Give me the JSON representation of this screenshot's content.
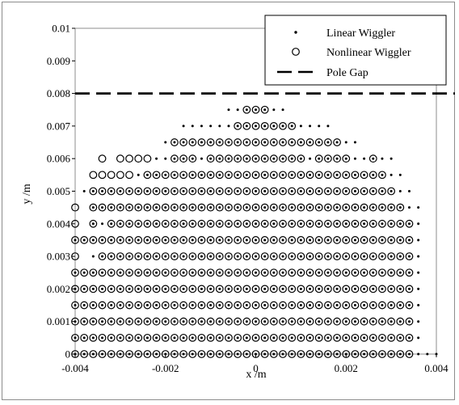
{
  "chart_data": {
    "type": "scatter",
    "xlabel": "x /m",
    "ylabel": "y /m",
    "xlim": [
      -0.004,
      0.004
    ],
    "ylim": [
      0,
      0.01
    ],
    "x_ticks": [
      "-0.004",
      "-0.002",
      "0",
      "0.002",
      "0.004"
    ],
    "y_ticks": [
      "0",
      "0.001",
      "0.002",
      "0.003",
      "0.004",
      "0.005",
      "0.006",
      "0.007",
      "0.008",
      "0.009",
      "0.01"
    ],
    "grid": false,
    "legend_position": "top-right",
    "legend": [
      "Linear Wiggler",
      "Nonlinear Wiggler",
      "Pole Gap"
    ],
    "grid_step": 0.0002,
    "pole_gap_y": 0.008,
    "series": [
      {
        "name": "Linear Wiggler",
        "marker": "dot",
        "rows": [
          {
            "y": 0.0075,
            "x_from": -0.0006,
            "x_to": 0.0006
          },
          {
            "y": 0.007,
            "x_from": -0.0016,
            "x_to": 0.0016
          },
          {
            "y": 0.0065,
            "x_from": -0.002,
            "x_to": 0.0022
          },
          {
            "y": 0.006,
            "x_from": -0.0022,
            "x_to": 0.003
          },
          {
            "y": 0.0055,
            "x_from": -0.0026,
            "x_to": 0.0032
          },
          {
            "y": 0.005,
            "x_from": -0.0038,
            "x_to": 0.0034
          },
          {
            "y": 0.0045,
            "x_from": -0.0036,
            "x_to": 0.0036
          },
          {
            "y": 0.004,
            "x_from": -0.0036,
            "x_to": 0.0036
          },
          {
            "y": 0.0035,
            "x_from": -0.004,
            "x_to": 0.0036
          },
          {
            "y": 0.003,
            "x_from": -0.0036,
            "x_to": 0.0036
          },
          {
            "y": 0.0025,
            "x_from": -0.004,
            "x_to": 0.0036
          },
          {
            "y": 0.002,
            "x_from": -0.004,
            "x_to": 0.0036
          },
          {
            "y": 0.0015,
            "x_from": -0.004,
            "x_to": 0.0036
          },
          {
            "y": 0.001,
            "x_from": -0.004,
            "x_to": 0.0036
          },
          {
            "y": 0.0005,
            "x_from": -0.004,
            "x_to": 0.0036
          },
          {
            "y": 0,
            "x_from": -0.004,
            "x_to": 0.004
          }
        ]
      },
      {
        "name": "Nonlinear Wiggler",
        "marker": "circle",
        "rows": [
          {
            "y": 0.0075,
            "x": [
              -0.0002,
              0,
              0.0002
            ]
          },
          {
            "y": 0.007,
            "x_from": -0.0004,
            "x_to": 0.0008
          },
          {
            "y": 0.0065,
            "x_from": -0.0018,
            "x_to": 0.0018
          },
          {
            "y": 0.006,
            "x": [
              -0.0034,
              -0.003,
              -0.0028,
              -0.0026,
              -0.0024,
              -0.0018,
              -0.0016,
              -0.0014,
              -0.001,
              -0.0008,
              -0.0006,
              -0.0004,
              -0.0002,
              0,
              0.0002,
              0.0004,
              0.0006,
              0.0008,
              0.001,
              0.0014,
              0.0016,
              0.0018,
              0.002,
              0.0026
            ]
          },
          {
            "y": 0.0055,
            "x": [
              -0.0036,
              -0.0034,
              -0.0032,
              -0.003,
              -0.0028,
              -0.0024,
              -0.0022,
              -0.002,
              -0.0018,
              -0.0016,
              -0.0014,
              -0.0012,
              -0.001,
              -0.0008,
              -0.0006,
              -0.0004,
              -0.0002,
              0,
              0.0002,
              0.0004,
              0.0006,
              0.0008,
              0.001,
              0.0012,
              0.0014,
              0.0016,
              0.0018,
              0.002,
              0.0022,
              0.0024,
              0.0026,
              0.0028
            ]
          },
          {
            "y": 0.005,
            "x_from": -0.0036,
            "x_to": 0.003
          },
          {
            "y": 0.0045,
            "x": [
              -0.004,
              -0.0036,
              -0.0034,
              -0.0032,
              -0.003,
              -0.0028,
              -0.0026,
              -0.0024,
              -0.0022,
              -0.002,
              -0.0018,
              -0.0016,
              -0.0014,
              -0.0012,
              -0.001,
              -0.0008,
              -0.0006,
              -0.0004,
              -0.0002,
              0,
              0.0002,
              0.0004,
              0.0006,
              0.0008,
              0.001,
              0.0012,
              0.0014,
              0.0016,
              0.0018,
              0.002,
              0.0022,
              0.0024,
              0.0026,
              0.0028,
              0.003,
              0.0032
            ]
          },
          {
            "y": 0.004,
            "x": [
              -0.004,
              -0.0036,
              -0.0032,
              -0.003,
              -0.0028,
              -0.0026,
              -0.0024,
              -0.0022,
              -0.002,
              -0.0018,
              -0.0016,
              -0.0014,
              -0.0012,
              -0.001,
              -0.0008,
              -0.0006,
              -0.0004,
              -0.0002,
              0,
              0.0002,
              0.0004,
              0.0006,
              0.0008,
              0.001,
              0.0012,
              0.0014,
              0.0016,
              0.0018,
              0.002,
              0.0022,
              0.0024,
              0.0026,
              0.0028,
              0.003,
              0.0032,
              0.0034
            ]
          },
          {
            "y": 0.0035,
            "x_from": -0.004,
            "x_to": 0.0034
          },
          {
            "y": 0.003,
            "x": [
              -0.004,
              -0.0034,
              -0.0032,
              -0.003,
              -0.0028,
              -0.0026,
              -0.0024,
              -0.0022,
              -0.002,
              -0.0018,
              -0.0016,
              -0.0014,
              -0.0012,
              -0.001,
              -0.0008,
              -0.0006,
              -0.0004,
              -0.0002,
              0,
              0.0002,
              0.0004,
              0.0006,
              0.0008,
              0.001,
              0.0012,
              0.0014,
              0.0016,
              0.0018,
              0.002,
              0.0022,
              0.0024,
              0.0026,
              0.0028,
              0.003,
              0.0032,
              0.0034
            ]
          },
          {
            "y": 0.0025,
            "x_from": -0.004,
            "x_to": 0.0034
          },
          {
            "y": 0.002,
            "x_from": -0.004,
            "x_to": 0.0034
          },
          {
            "y": 0.0015,
            "x_from": -0.004,
            "x_to": 0.0034
          },
          {
            "y": 0.001,
            "x_from": -0.004,
            "x_to": 0.0034
          },
          {
            "y": 0.0005,
            "x_from": -0.004,
            "x_to": 0.0034
          },
          {
            "y": 0,
            "x_from": -0.004,
            "x_to": 0.0034
          }
        ]
      }
    ]
  }
}
